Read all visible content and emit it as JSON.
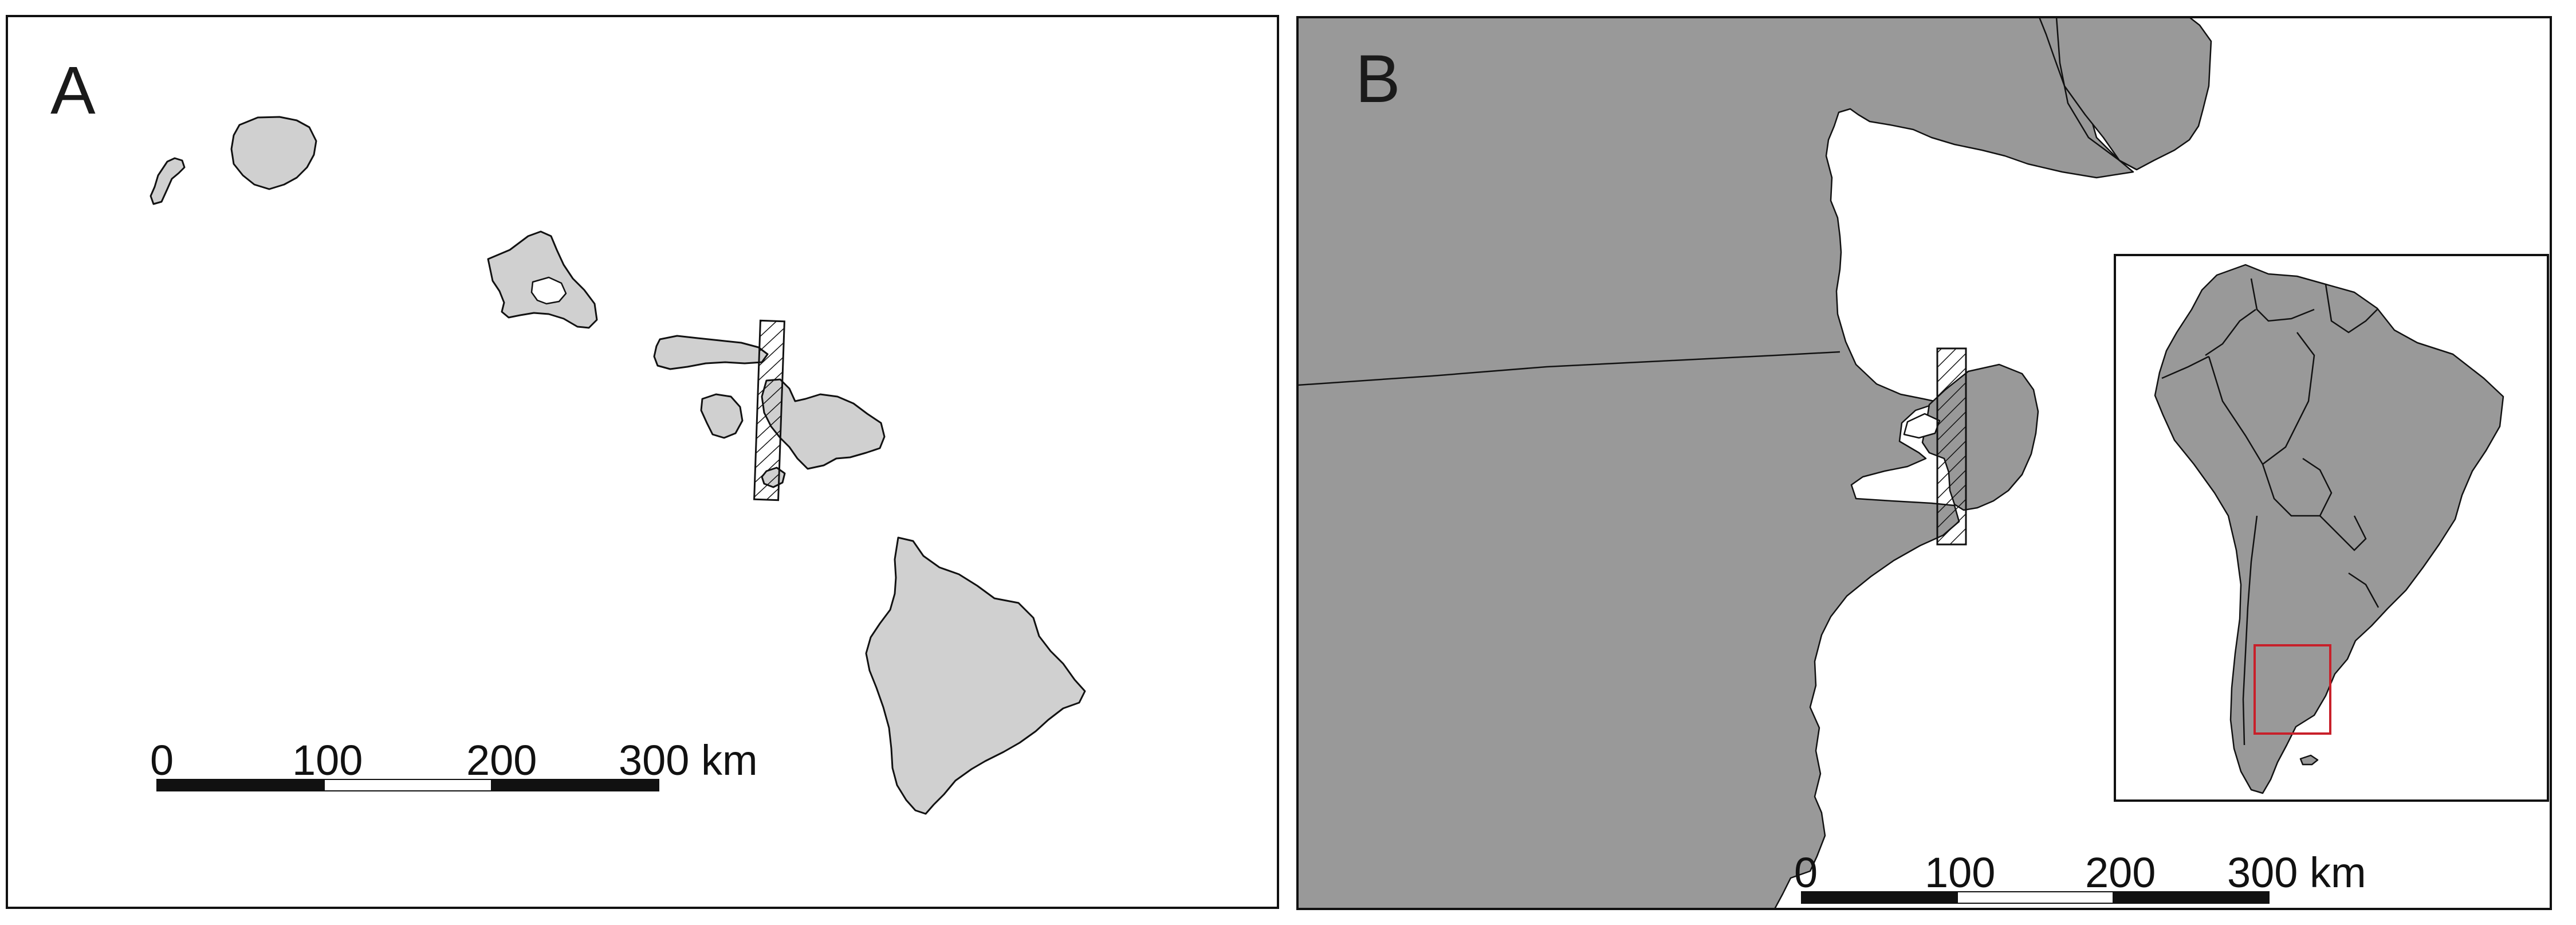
{
  "panels": {
    "a": {
      "label": "A",
      "scale_bar": {
        "ticks": [
          "0",
          "100",
          "200",
          "300 km"
        ]
      }
    },
    "b": {
      "label": "B",
      "scale_bar": {
        "ticks": [
          "0",
          "100",
          "200",
          "300 km"
        ]
      },
      "inset": {
        "highlight_color": "#c8202a"
      }
    }
  },
  "colors": {
    "island_fill": "#d0d0d0",
    "land_fill": "#999999",
    "outline": "#111111"
  }
}
